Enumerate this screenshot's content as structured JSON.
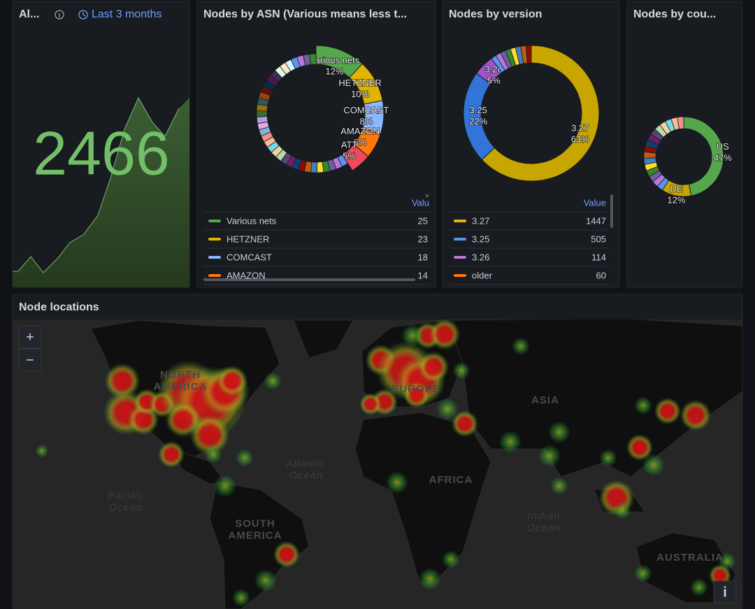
{
  "stat": {
    "title": "Al...",
    "time_range": "Last 3 months",
    "value": "2466"
  },
  "asn": {
    "title": "Nodes by ASN (Various means less t...",
    "legend_header": "Valu",
    "slices": [
      {
        "name": "Various nets",
        "percent": 12,
        "percent_label": "12%",
        "color": "#56a64b"
      },
      {
        "name": "HETZNER",
        "percent": 10,
        "percent_label": "10%",
        "color": "#e0b400"
      },
      {
        "name": "COMCAST",
        "percent": 8,
        "percent_label": "8%",
        "color": "#8ab8ff"
      },
      {
        "name": "AMAZON",
        "percent": 6,
        "percent_label": "6%",
        "color": "#ff780a"
      },
      {
        "name": "ATT",
        "percent": 5,
        "percent_label": "5%",
        "color": "#f2495c"
      }
    ],
    "legend": [
      {
        "name": "Various nets",
        "value": 25,
        "color": "#56a64b"
      },
      {
        "name": "HETZNER",
        "value": 23,
        "color": "#e0b400"
      },
      {
        "name": "COMCAST",
        "value": 18,
        "color": "#8ab8ff"
      },
      {
        "name": "AMAZON",
        "value": 14,
        "color": "#ff780a"
      }
    ]
  },
  "version": {
    "title": "Nodes by version",
    "legend_header": "Value",
    "slices": [
      {
        "name": "3.27",
        "percent": 63,
        "percent_label": "63%",
        "color": "#c8a600"
      },
      {
        "name": "3.25",
        "percent": 22,
        "percent_label": "22%",
        "color": "#3274d9"
      },
      {
        "name": "3.26",
        "percent": 5,
        "percent_label": "5%",
        "color": "#a352cc"
      }
    ],
    "legend": [
      {
        "name": "3.27",
        "value": 1447,
        "color": "#e0b400"
      },
      {
        "name": "3.25",
        "value": 505,
        "color": "#5794f2"
      },
      {
        "name": "3.26",
        "value": 114,
        "color": "#b877d9"
      },
      {
        "name": "older",
        "value": 60,
        "color": "#ff780a"
      }
    ]
  },
  "country": {
    "title": "Nodes by cou...",
    "slices": [
      {
        "name": "US",
        "percent": 47,
        "percent_label": "47%",
        "color": "#56a64b"
      },
      {
        "name": "DE",
        "percent": 12,
        "percent_label": "12%",
        "color": "#c8a600"
      }
    ]
  },
  "map": {
    "title": "Node locations",
    "zoom_in": "+",
    "zoom_out": "−",
    "info": "i",
    "labels": [
      {
        "lines": [
          "NORTH",
          "AMERICA"
        ],
        "kind": "continent"
      },
      {
        "lines": [
          "EUROPE"
        ],
        "kind": "continent"
      },
      {
        "lines": [
          "ASIA"
        ],
        "kind": "continent"
      },
      {
        "lines": [
          "AFRICA"
        ],
        "kind": "continent"
      },
      {
        "lines": [
          "SOUTH",
          "AMERICA"
        ],
        "kind": "continent"
      },
      {
        "lines": [
          "AUSTRALIA"
        ],
        "kind": "continent"
      },
      {
        "lines": [
          "Pacific",
          "Ocean"
        ],
        "kind": "ocean"
      },
      {
        "lines": [
          "Atlantic",
          "Ocean"
        ],
        "kind": "ocean"
      },
      {
        "lines": [
          "Indian",
          "Ocean"
        ],
        "kind": "ocean"
      }
    ]
  }
}
